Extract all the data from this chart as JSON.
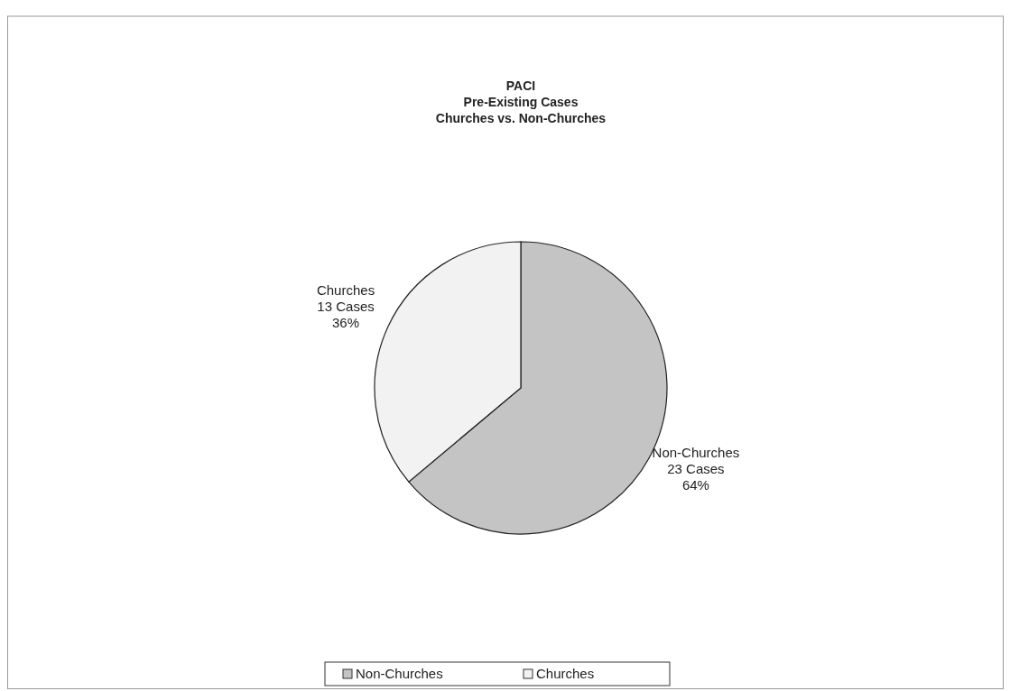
{
  "chart_data": {
    "type": "pie",
    "title": "PACI\nPre-Existing Cases\nChurches vs. Non-Churches",
    "categories": [
      "Non-Churches",
      "Churches"
    ],
    "values": [
      23,
      13
    ],
    "colors": [
      "#c4c4c4",
      "#f2f2f2"
    ],
    "value_labels": [
      "23 Cases\n64%",
      "13 Cases\n36%"
    ],
    "legend": "bottom"
  }
}
